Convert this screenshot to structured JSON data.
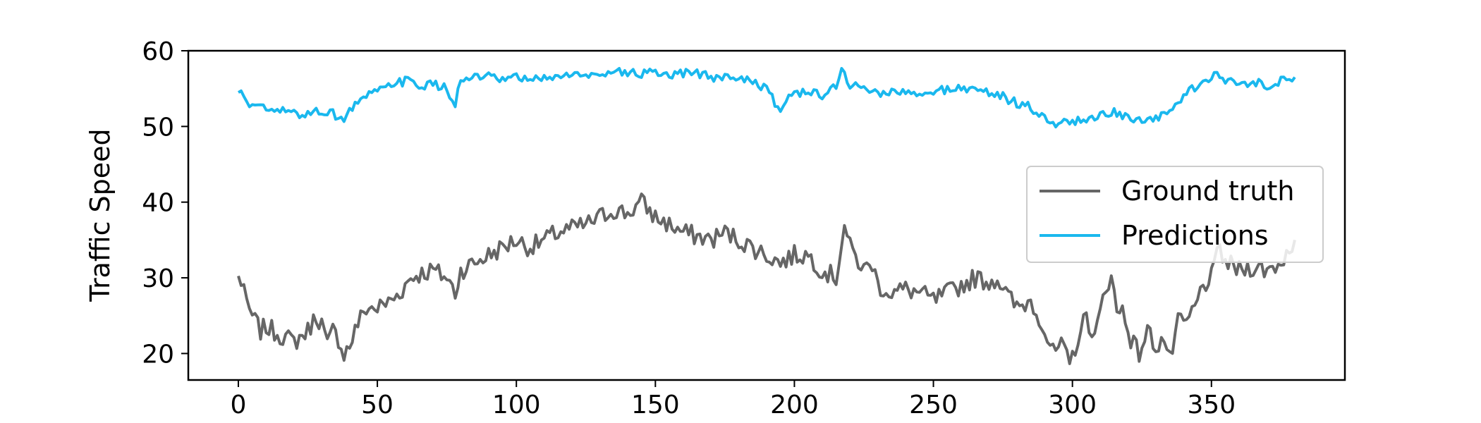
{
  "chart_data": {
    "type": "line",
    "title": "",
    "xlabel": "",
    "ylabel": "Traffic Speed",
    "xlim": [
      -18,
      398
    ],
    "ylim": [
      16.5,
      60
    ],
    "xticks": [
      0,
      50,
      100,
      150,
      200,
      250,
      300,
      350
    ],
    "yticks": [
      20,
      30,
      40,
      50,
      60
    ],
    "grid": false,
    "legend": {
      "placement": "center-right"
    },
    "series": [
      {
        "name": "Ground truth",
        "color": "#666666",
        "keypoints": [
          [
            0,
            30
          ],
          [
            2,
            29
          ],
          [
            3,
            26
          ],
          [
            5,
            25
          ],
          [
            8,
            23
          ],
          [
            10,
            23.5
          ],
          [
            15,
            22.5
          ],
          [
            20,
            21.5
          ],
          [
            25,
            23
          ],
          [
            28,
            25
          ],
          [
            30,
            24
          ],
          [
            32,
            21
          ],
          [
            34,
            23
          ],
          [
            36,
            22
          ],
          [
            38,
            20
          ],
          [
            40,
            21
          ],
          [
            43,
            24
          ],
          [
            46,
            26
          ],
          [
            50,
            26
          ],
          [
            55,
            27
          ],
          [
            58,
            28
          ],
          [
            62,
            30
          ],
          [
            65,
            30.5
          ],
          [
            70,
            31
          ],
          [
            75,
            30
          ],
          [
            78,
            28
          ],
          [
            80,
            31
          ],
          [
            85,
            32
          ],
          [
            90,
            33
          ],
          [
            95,
            34
          ],
          [
            100,
            35
          ],
          [
            105,
            34
          ],
          [
            110,
            35
          ],
          [
            115,
            36
          ],
          [
            120,
            36.5
          ],
          [
            125,
            37
          ],
          [
            130,
            38
          ],
          [
            135,
            39
          ],
          [
            140,
            38.5
          ],
          [
            145,
            40
          ],
          [
            150,
            38
          ],
          [
            155,
            37
          ],
          [
            160,
            36
          ],
          [
            165,
            35.5
          ],
          [
            170,
            35
          ],
          [
            175,
            36
          ],
          [
            180,
            35
          ],
          [
            185,
            34
          ],
          [
            190,
            33
          ],
          [
            195,
            32
          ],
          [
            200,
            33
          ],
          [
            205,
            33
          ],
          [
            210,
            31
          ],
          [
            215,
            30
          ],
          [
            218,
            37
          ],
          [
            220,
            34
          ],
          [
            225,
            31
          ],
          [
            228,
            32
          ],
          [
            230,
            29
          ],
          [
            235,
            28
          ],
          [
            240,
            28.5
          ],
          [
            245,
            28
          ],
          [
            250,
            27
          ],
          [
            255,
            28
          ],
          [
            260,
            29
          ],
          [
            265,
            30
          ],
          [
            270,
            29.5
          ],
          [
            273,
            30
          ],
          [
            276,
            28
          ],
          [
            280,
            26
          ],
          [
            285,
            27
          ],
          [
            288,
            25
          ],
          [
            290,
            23
          ],
          [
            293,
            20
          ],
          [
            296,
            21
          ],
          [
            299,
            18.5
          ],
          [
            302,
            22
          ],
          [
            305,
            25
          ],
          [
            308,
            22
          ],
          [
            311,
            27
          ],
          [
            314,
            31
          ],
          [
            316,
            25
          ],
          [
            318,
            26
          ],
          [
            321,
            22
          ],
          [
            324,
            20
          ],
          [
            327,
            23
          ],
          [
            330,
            21
          ],
          [
            333,
            22
          ],
          [
            335,
            19
          ],
          [
            338,
            24
          ],
          [
            341,
            24
          ],
          [
            344,
            26
          ],
          [
            347,
            29
          ],
          [
            350,
            30
          ],
          [
            353,
            34
          ],
          [
            355,
            32
          ],
          [
            360,
            31
          ],
          [
            365,
            31.5
          ],
          [
            370,
            31
          ],
          [
            375,
            32
          ],
          [
            380,
            35
          ]
        ],
        "amplitude": 1.3
      },
      {
        "name": "Predictions",
        "color": "#1ab8ee",
        "keypoints": [
          [
            0,
            54.5
          ],
          [
            2,
            54
          ],
          [
            4,
            53
          ],
          [
            8,
            52.5
          ],
          [
            12,
            52
          ],
          [
            18,
            52
          ],
          [
            22,
            51.5
          ],
          [
            28,
            52
          ],
          [
            32,
            52
          ],
          [
            38,
            51
          ],
          [
            42,
            53
          ],
          [
            46,
            54
          ],
          [
            50,
            54.5
          ],
          [
            55,
            55.5
          ],
          [
            60,
            56
          ],
          [
            65,
            55.5
          ],
          [
            70,
            55.5
          ],
          [
            75,
            55
          ],
          [
            78,
            53
          ],
          [
            80,
            56
          ],
          [
            85,
            56.5
          ],
          [
            90,
            56.5
          ],
          [
            95,
            56
          ],
          [
            100,
            56.5
          ],
          [
            105,
            56
          ],
          [
            110,
            56.5
          ],
          [
            115,
            56.5
          ],
          [
            120,
            57
          ],
          [
            125,
            56.5
          ],
          [
            130,
            57
          ],
          [
            135,
            57.5
          ],
          [
            140,
            57
          ],
          [
            145,
            57
          ],
          [
            150,
            57
          ],
          [
            155,
            56.5
          ],
          [
            160,
            57
          ],
          [
            165,
            57
          ],
          [
            170,
            56.5
          ],
          [
            175,
            56.5
          ],
          [
            180,
            56.5
          ],
          [
            185,
            56
          ],
          [
            190,
            55
          ],
          [
            193,
            53
          ],
          [
            195,
            52
          ],
          [
            198,
            54
          ],
          [
            200,
            54.5
          ],
          [
            205,
            54.5
          ],
          [
            210,
            54
          ],
          [
            215,
            55.5
          ],
          [
            217,
            57.5
          ],
          [
            220,
            55.5
          ],
          [
            225,
            55
          ],
          [
            230,
            54.5
          ],
          [
            235,
            54.5
          ],
          [
            240,
            54.5
          ],
          [
            245,
            54
          ],
          [
            250,
            54.5
          ],
          [
            255,
            55
          ],
          [
            260,
            55
          ],
          [
            265,
            55
          ],
          [
            270,
            54.5
          ],
          [
            275,
            54
          ],
          [
            280,
            53
          ],
          [
            285,
            52.5
          ],
          [
            290,
            51
          ],
          [
            293,
            50
          ],
          [
            296,
            51
          ],
          [
            300,
            50.5
          ],
          [
            305,
            51
          ],
          [
            310,
            51.5
          ],
          [
            315,
            52
          ],
          [
            320,
            51
          ],
          [
            325,
            50.5
          ],
          [
            330,
            51
          ],
          [
            335,
            52
          ],
          [
            340,
            54
          ],
          [
            345,
            55.5
          ],
          [
            350,
            56.5
          ],
          [
            352,
            57
          ],
          [
            355,
            56
          ],
          [
            360,
            55.5
          ],
          [
            365,
            56
          ],
          [
            370,
            55.5
          ],
          [
            375,
            56
          ],
          [
            380,
            56.5
          ]
        ],
        "amplitude": 0.6
      }
    ]
  }
}
